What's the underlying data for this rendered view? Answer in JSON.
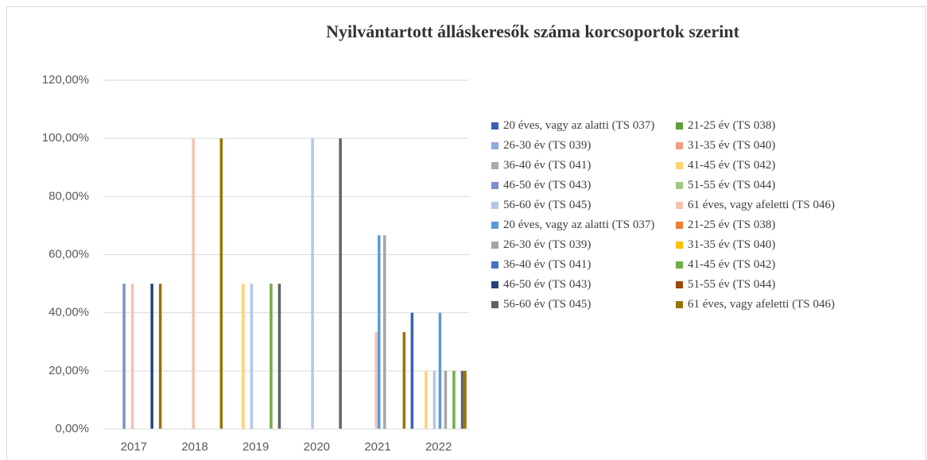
{
  "chart_data": {
    "type": "bar",
    "title": "Nyilvántartott álláskeresők száma korcsoportok szerint",
    "categories": [
      "2017",
      "2018",
      "2019",
      "2020",
      "2021",
      "2022"
    ],
    "ylim": [
      0,
      120
    ],
    "yticks": [
      {
        "value": 0,
        "label": "0,00%"
      },
      {
        "value": 20,
        "label": "20,00%"
      },
      {
        "value": 40,
        "label": "40,00%"
      },
      {
        "value": 60,
        "label": "60,00%"
      },
      {
        "value": 80,
        "label": "80,00%"
      },
      {
        "value": 100,
        "label": "100,00%"
      },
      {
        "value": 120,
        "label": "120,00%"
      }
    ],
    "grid": true,
    "legend": "right",
    "series": [
      {
        "name": "20 éves, vagy az alatti (TS 037)",
        "color": "#3A62B4",
        "values": [
          0,
          0,
          0,
          0,
          0,
          40
        ]
      },
      {
        "name": "21-25 év (TS 038)",
        "color": "#5E9E3C",
        "values": [
          0,
          0,
          0,
          0,
          0,
          0
        ]
      },
      {
        "name": "26-30 év (TS 039)",
        "color": "#8FAADC",
        "values": [
          0,
          0,
          0,
          0,
          0,
          0
        ]
      },
      {
        "name": "31-35 év (TS 040)",
        "color": "#F19C7C",
        "values": [
          0,
          0,
          0,
          0,
          0,
          0
        ]
      },
      {
        "name": "36-40 év (TS 041)",
        "color": "#ABABAB",
        "values": [
          0,
          0,
          0,
          0,
          0,
          0
        ]
      },
      {
        "name": "41-45 év (TS 042)",
        "color": "#FFD270",
        "values": [
          0,
          0,
          50,
          0,
          0,
          20
        ]
      },
      {
        "name": "46-50 év (TS 043)",
        "color": "#7C8FD0",
        "values": [
          50,
          0,
          0,
          0,
          0,
          0
        ]
      },
      {
        "name": "51-55 év (TS 044)",
        "color": "#9DC97C",
        "values": [
          0,
          0,
          0,
          0,
          0,
          0
        ]
      },
      {
        "name": "56-60 év (TS 045)",
        "color": "#B4C7E7",
        "values": [
          0,
          0,
          50,
          100,
          0,
          20
        ]
      },
      {
        "name": "61 éves, vagy afeletti (TS 046)",
        "color": "#F4C2B0",
        "values": [
          50,
          100,
          0,
          0,
          33.33,
          0
        ]
      },
      {
        "name": "20 éves, vagy az alatti (TS 037)",
        "color": "#5B9BD5",
        "values": [
          0,
          0,
          0,
          0,
          66.67,
          40
        ]
      },
      {
        "name": "21-25 év (TS 038)",
        "color": "#ED7D31",
        "values": [
          0,
          0,
          0,
          0,
          0,
          0
        ]
      },
      {
        "name": "26-30 év (TS 039)",
        "color": "#A5A5A5",
        "values": [
          0,
          0,
          0,
          0,
          66.67,
          20
        ]
      },
      {
        "name": "31-35 év (TS 040)",
        "color": "#FFC000",
        "values": [
          0,
          0,
          0,
          0,
          0,
          0
        ]
      },
      {
        "name": "36-40 év (TS 041)",
        "color": "#4472C4",
        "values": [
          0,
          0,
          0,
          0,
          0,
          0
        ]
      },
      {
        "name": "41-45 év (TS 042)",
        "color": "#70AD47",
        "values": [
          0,
          0,
          50,
          0,
          0,
          20
        ]
      },
      {
        "name": "46-50 év (TS 043)",
        "color": "#264478",
        "values": [
          50,
          0,
          0,
          0,
          0,
          0
        ]
      },
      {
        "name": "51-55 év (TS 044)",
        "color": "#9E480E",
        "values": [
          0,
          0,
          0,
          0,
          0,
          0
        ]
      },
      {
        "name": "56-60 év (TS 045)",
        "color": "#636363",
        "values": [
          0,
          0,
          50,
          100,
          0,
          20
        ]
      },
      {
        "name": "61 éves, vagy afeletti (TS 046)",
        "color": "#997300",
        "values": [
          50,
          100,
          0,
          0,
          33.33,
          20
        ]
      }
    ]
  }
}
